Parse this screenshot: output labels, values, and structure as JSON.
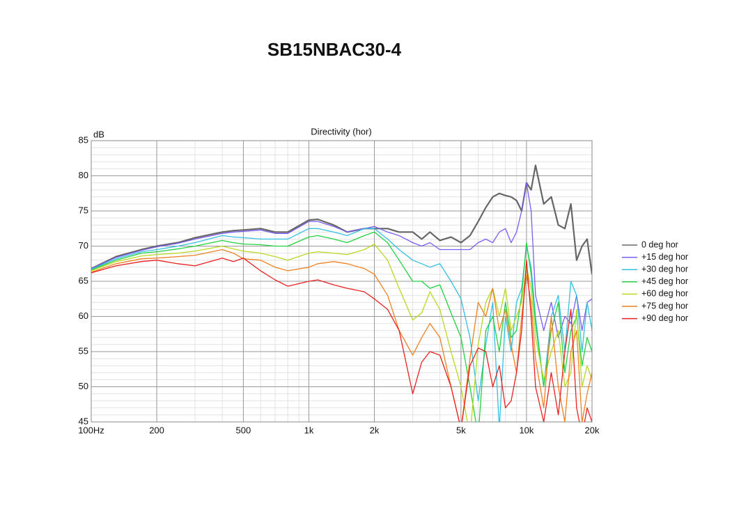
{
  "chart_data": {
    "type": "line",
    "title": "SB15NBAC30-4",
    "subtitle": "Directivity (hor)",
    "ylabel": "dB",
    "log_x": true,
    "grid": true,
    "minor_grid": true,
    "legend": "right",
    "xlim": [
      100,
      20000
    ],
    "ylim": [
      45,
      85
    ],
    "xticks": [
      {
        "value": 100,
        "label": "100Hz"
      },
      200,
      500,
      {
        "value": 1000,
        "label": "1k"
      },
      {
        "value": 2000,
        "label": "2k"
      },
      {
        "value": 5000,
        "label": "5k"
      },
      {
        "value": 10000,
        "label": "10k"
      },
      {
        "value": 20000,
        "label": "20k"
      }
    ],
    "yticks": [
      45,
      50,
      55,
      60,
      65,
      70,
      75,
      80,
      85
    ],
    "x": [
      100,
      130,
      170,
      200,
      250,
      300,
      400,
      450,
      500,
      600,
      700,
      800,
      1000,
      1100,
      1300,
      1500,
      1800,
      2000,
      2300,
      2600,
      3000,
      3300,
      3600,
      4000,
      4500,
      5000,
      5500,
      6000,
      6500,
      7000,
      7500,
      8000,
      8500,
      9000,
      9500,
      10000,
      10500,
      11000,
      12000,
      13000,
      14000,
      15000,
      16000,
      17000,
      18000,
      19000,
      20000
    ],
    "series": [
      {
        "name": "0 deg hor",
        "color": "#666666",
        "values": [
          66.8,
          68.5,
          69.5,
          70,
          70.5,
          71.2,
          72,
          72.2,
          72.3,
          72.5,
          72,
          72,
          73.7,
          73.8,
          73,
          72,
          72.5,
          72.5,
          72.5,
          72,
          72,
          71,
          72,
          70.8,
          71.3,
          70.5,
          71.5,
          73.5,
          75.5,
          77,
          77.5,
          77.2,
          77,
          76.5,
          75,
          79,
          78,
          81.5,
          76,
          77,
          73,
          72.5,
          76,
          68,
          70,
          71,
          66
        ]
      },
      {
        "name": "+15 deg hor",
        "color": "#7b5cf0",
        "values": [
          66.8,
          68.4,
          69.4,
          69.9,
          70.4,
          71,
          71.8,
          72,
          72.1,
          72.3,
          71.8,
          71.8,
          73.5,
          73.5,
          72.8,
          72,
          72.5,
          72.8,
          72,
          71.5,
          70.5,
          70,
          70.5,
          69.5,
          69.5,
          69.5,
          69.5,
          70.5,
          71,
          70.5,
          72,
          72.5,
          70.5,
          72,
          75,
          79,
          75,
          63,
          58,
          62,
          57,
          60,
          59,
          63,
          58,
          62,
          62.5
        ]
      },
      {
        "name": "+30 deg hor",
        "color": "#33c0e0",
        "values": [
          66.7,
          68.2,
          69.2,
          69.5,
          70,
          70.5,
          71.5,
          71.3,
          71.2,
          71,
          71,
          71,
          72.5,
          72.5,
          72,
          71.5,
          72.5,
          72.5,
          71,
          69.5,
          68,
          67.5,
          67,
          67.5,
          65,
          62.5,
          57,
          48,
          56,
          62,
          44,
          60,
          55,
          62,
          64,
          70,
          67,
          60,
          50,
          60,
          63,
          55,
          65,
          63,
          55,
          62,
          58
        ]
      },
      {
        "name": "+45 deg hor",
        "color": "#22d040",
        "values": [
          66.6,
          68,
          69,
          69.2,
          69.6,
          70,
          70.8,
          70.5,
          70.3,
          70.2,
          70,
          70,
          71.3,
          71.5,
          71,
          70.5,
          71.5,
          72,
          70.5,
          68,
          65,
          65,
          64,
          64.5,
          60.5,
          57,
          50,
          43,
          58,
          60,
          55,
          62,
          57,
          58,
          63,
          70.5,
          66,
          59,
          50,
          58,
          62,
          52,
          58,
          60,
          53,
          57,
          55
        ]
      },
      {
        "name": "+60 deg hor",
        "color": "#b8d820",
        "values": [
          66.5,
          67.8,
          68.6,
          68.8,
          69,
          69.3,
          70,
          69.6,
          69.3,
          69,
          68.5,
          68,
          69,
          69.2,
          69,
          68.8,
          69.5,
          70.3,
          68,
          64,
          59.5,
          60.5,
          63.5,
          61,
          55,
          50,
          43,
          56,
          62,
          64,
          60,
          64,
          58,
          60,
          62,
          67,
          64,
          57,
          51,
          55,
          58,
          50,
          52,
          61,
          50,
          53,
          51
        ]
      },
      {
        "name": "+75 deg hor",
        "color": "#f08020",
        "values": [
          66.3,
          67.5,
          68.2,
          68.3,
          68.5,
          68.7,
          69.5,
          69,
          68.2,
          68,
          67,
          66.5,
          67,
          67.5,
          67.8,
          67.5,
          66.8,
          66,
          63,
          58,
          54.5,
          57,
          59,
          57,
          50,
          44,
          54,
          62,
          60,
          64,
          58,
          61,
          56,
          52,
          60,
          66,
          62,
          54,
          47,
          60,
          50,
          45,
          55,
          58,
          45,
          49,
          52
        ]
      },
      {
        "name": "+90 deg hor",
        "color": "#e82020",
        "values": [
          66.2,
          67.2,
          67.8,
          68,
          67.5,
          67.2,
          68.3,
          67.8,
          68.3,
          66.5,
          65.2,
          64.3,
          65,
          65.2,
          64.5,
          64,
          63.5,
          62.5,
          61,
          58,
          49,
          53.5,
          55,
          54.5,
          50,
          44,
          53,
          55.5,
          55,
          50,
          53,
          47,
          48,
          52,
          58,
          68,
          60,
          50,
          45,
          52,
          46,
          55,
          61,
          47,
          43,
          47,
          45
        ]
      }
    ]
  }
}
